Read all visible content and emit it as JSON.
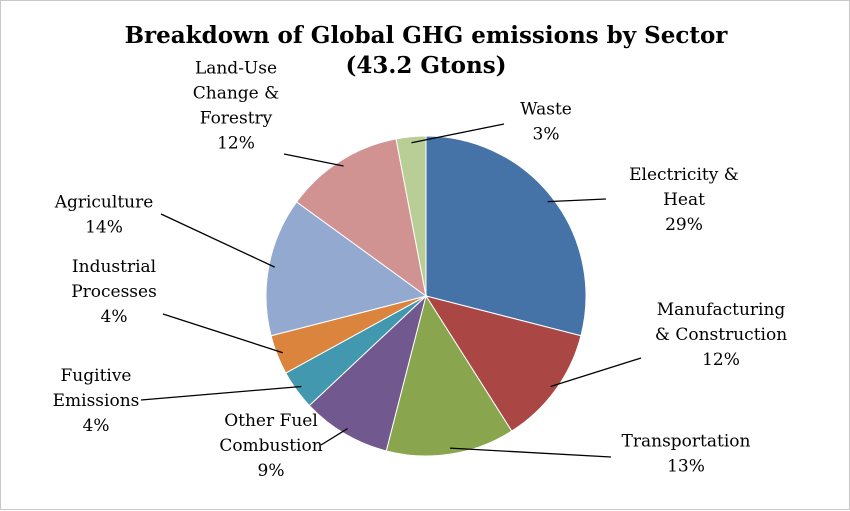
{
  "chart_data": {
    "type": "pie",
    "title": "Breakdown of Global GHG emissions by Sector",
    "subtitle": "(43.2 Gtons)",
    "slices": [
      {
        "name": "Electricity & Heat",
        "label_lines": [
          "Electricity &",
          "Heat"
        ],
        "value": 29,
        "value_label": "29%",
        "color": "#4572a7"
      },
      {
        "name": "Manufacturing & Construction",
        "label_lines": [
          "Manufacturing",
          "& Construction"
        ],
        "value": 12,
        "value_label": "12%",
        "color": "#aa4643"
      },
      {
        "name": "Transportation",
        "label_lines": [
          "Transportation"
        ],
        "value": 13,
        "value_label": "13%",
        "color": "#89a54e"
      },
      {
        "name": "Other Fuel Combustion",
        "label_lines": [
          "Other Fuel",
          "Combustion"
        ],
        "value": 9,
        "value_label": "9%",
        "color": "#71588f"
      },
      {
        "name": "Fugitive Emissions",
        "label_lines": [
          "Fugitive",
          "Emissions"
        ],
        "value": 4,
        "value_label": "4%",
        "color": "#4198af"
      },
      {
        "name": "Industrial Processes",
        "label_lines": [
          "Industrial",
          "Processes"
        ],
        "value": 4,
        "value_label": "4%",
        "color": "#db843d"
      },
      {
        "name": "Agriculture",
        "label_lines": [
          "Agriculture"
        ],
        "value": 14,
        "value_label": "14%",
        "color": "#93a9cf"
      },
      {
        "name": "Land-Use Change & Forestry",
        "label_lines": [
          "Land-Use",
          "Change &",
          "Forestry"
        ],
        "value": 12,
        "value_label": "12%",
        "color": "#d19392"
      },
      {
        "name": "Waste",
        "label_lines": [
          "Waste"
        ],
        "value": 3,
        "value_label": "3%",
        "color": "#b9cd96"
      }
    ]
  }
}
